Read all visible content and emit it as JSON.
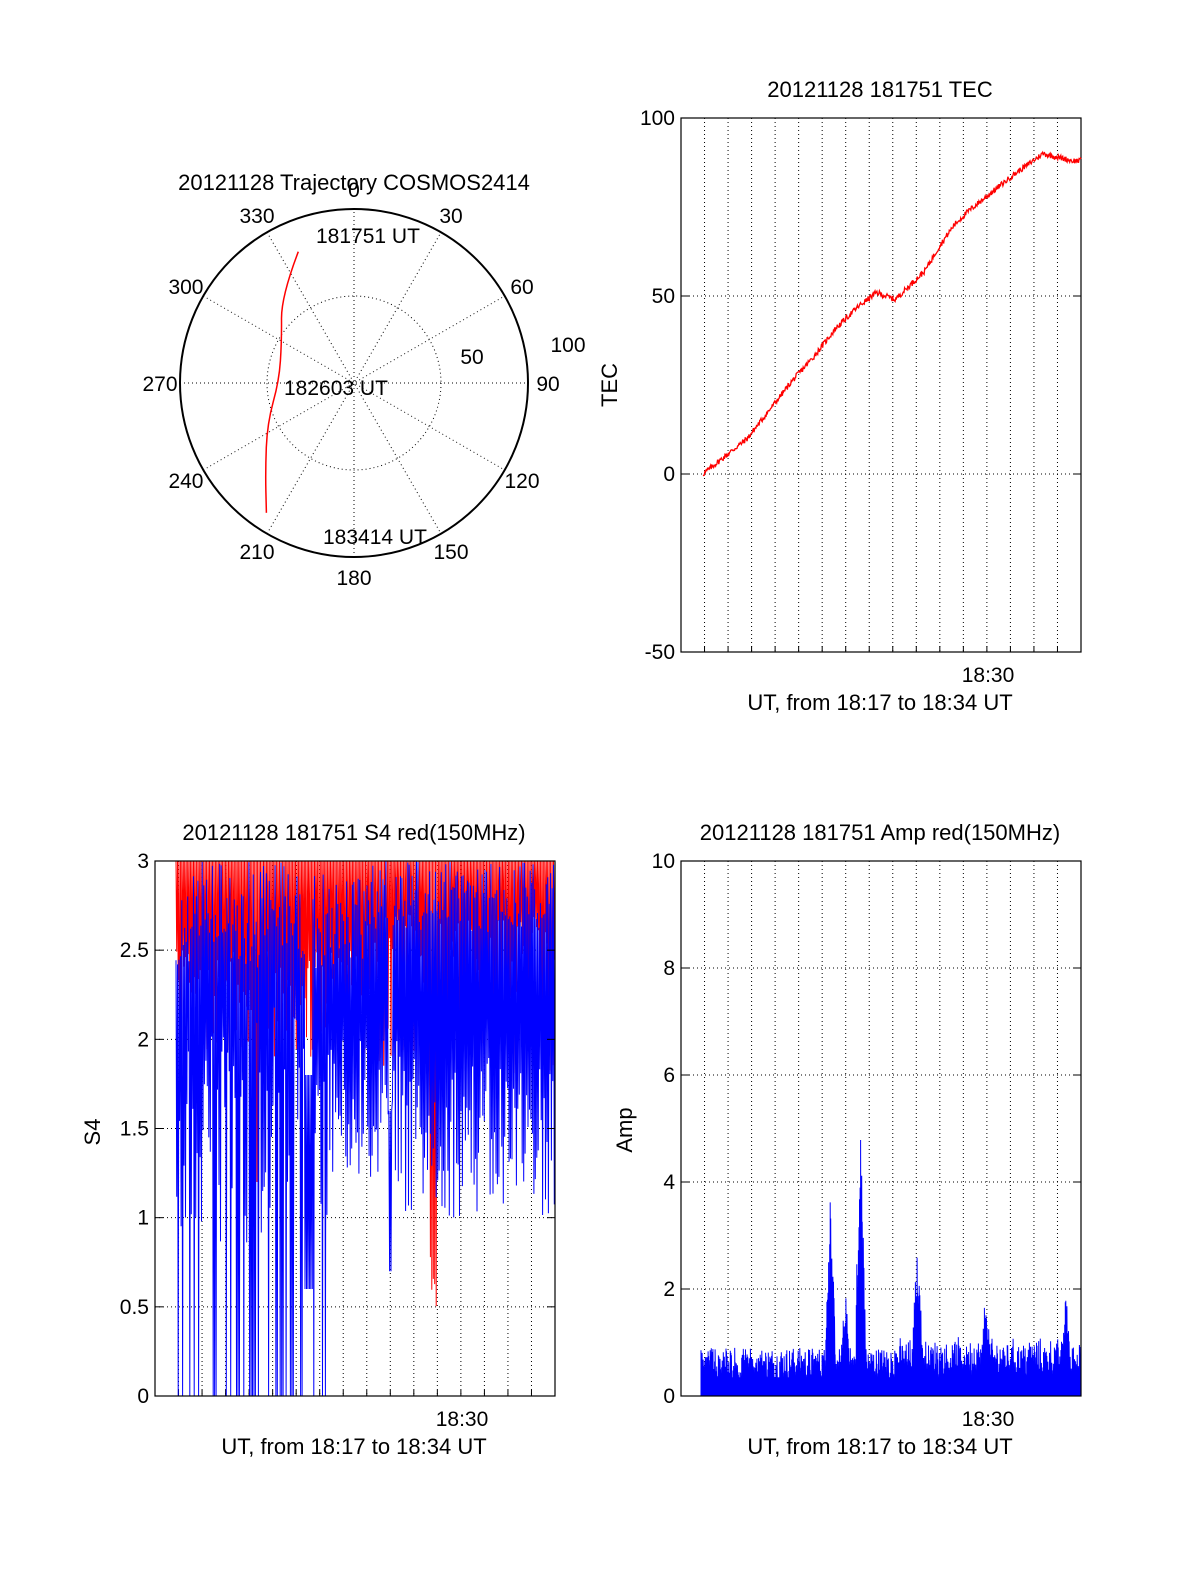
{
  "chart_data": [
    {
      "type": "polar",
      "title": "20121128 Trajectory COSMOS2414",
      "angle_labels": [
        "0",
        "30",
        "60",
        "90",
        "120",
        "150",
        "180",
        "210",
        "240",
        "270",
        "300",
        "330"
      ],
      "radius_labels": [
        "50",
        "100"
      ],
      "annotations": {
        "start": "181751 UT",
        "mid": "182603 UT",
        "end": "183414 UT"
      },
      "series": [
        {
          "color": "#ff0000",
          "points": [
            {
              "az": 337,
              "zen": 82
            },
            {
              "az": 320,
              "zen": 65
            },
            {
              "az": 300,
              "zen": 48
            },
            {
              "az": 272,
              "zen": 43
            },
            {
              "az": 245,
              "zen": 55
            },
            {
              "az": 225,
              "zen": 72
            },
            {
              "az": 214,
              "zen": 90
            }
          ]
        }
      ]
    },
    {
      "type": "line",
      "title": "20121128 181751 TEC",
      "xlabel": "UT, from 18:17 to 18:34 UT",
      "ylabel": "TEC",
      "ylim": [
        -50,
        100
      ],
      "yticks": [
        "100",
        "50",
        "0",
        "-50"
      ],
      "xlim": [
        0,
        1023
      ],
      "xtick_label": "18:30",
      "xtick_at": 763,
      "series": [
        {
          "color": "#ff0000",
          "x": [
            0,
            60,
            120,
            180,
            240,
            300,
            360,
            420,
            470,
            520,
            560,
            600,
            640,
            680,
            720,
            780,
            840,
            880,
            920,
            960,
            1000,
            1023
          ],
          "values": [
            0,
            5,
            10,
            18,
            26,
            33,
            41,
            47,
            51,
            49,
            53,
            57,
            64,
            70,
            74,
            79,
            84,
            87,
            90,
            89,
            88,
            88
          ]
        }
      ]
    },
    {
      "type": "line",
      "title": "20121128 181751 S4 red(150MHz)",
      "xlabel": "UT, from 18:17 to 18:34 UT",
      "ylabel": "S4",
      "ylim": [
        0,
        3
      ],
      "yticks": [
        "3",
        "2.5",
        "2",
        "1.5",
        "1",
        "0.5",
        "0"
      ],
      "xtick_label": "18:30",
      "series": [
        {
          "color": "#ff0000",
          "description": "S4 red, dense oscillation 1.8-3 with dip to 0.5 near 18:29"
        },
        {
          "color": "#0000ff",
          "description": "S4 blue, dense oscillation 1-3 with drops to 0 before 18:23"
        }
      ]
    },
    {
      "type": "line",
      "title": "20121128 181751 Amp red(150MHz)",
      "xlabel": "UT, from 18:17 to 18:34 UT",
      "ylabel": "Amp",
      "ylim": [
        0,
        10
      ],
      "yticks": [
        "10",
        "8",
        "6",
        "4",
        "2",
        "0"
      ],
      "xtick_label": "18:30",
      "series": [
        {
          "color": "#0000ff",
          "baseline": 0.7,
          "peaks": [
            {
              "at": 0.34,
              "value": 3.8
            },
            {
              "at": 0.38,
              "value": 2.0
            },
            {
              "at": 0.42,
              "value": 5.1
            },
            {
              "at": 0.57,
              "value": 3.1
            },
            {
              "at": 0.75,
              "value": 2.1
            },
            {
              "at": 0.96,
              "value": 2.0
            }
          ]
        }
      ]
    }
  ]
}
